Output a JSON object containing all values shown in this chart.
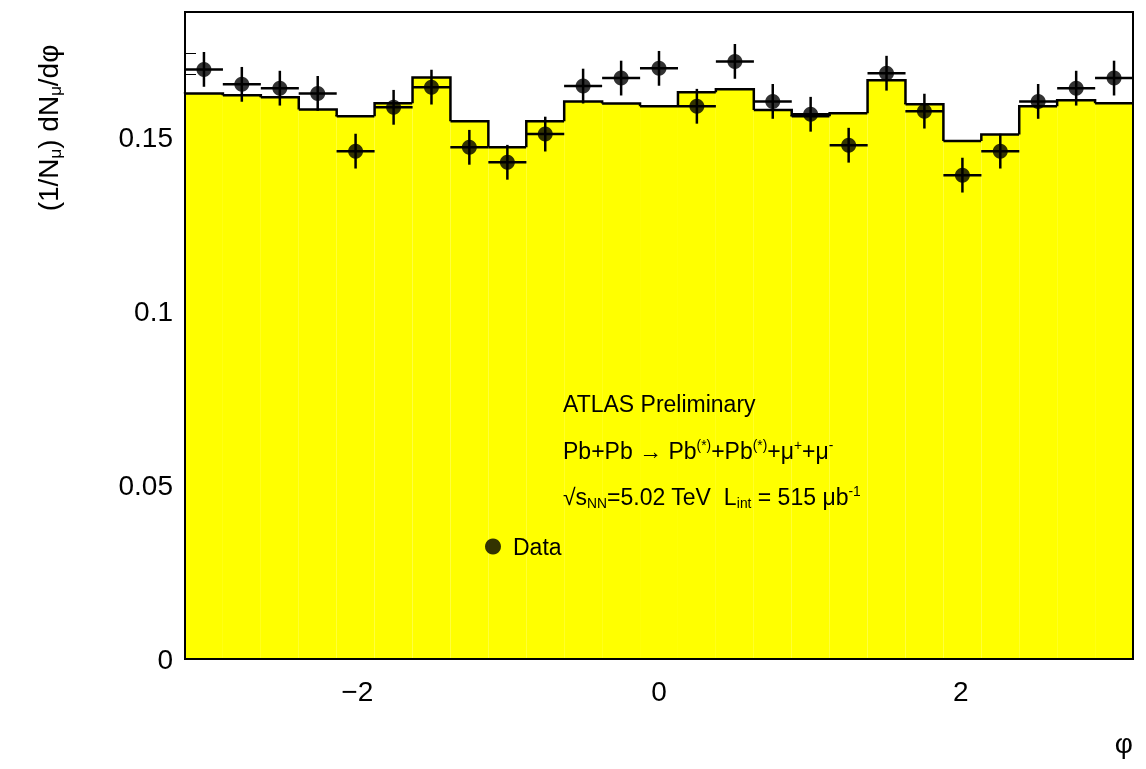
{
  "chart_data": {
    "type": "histogram",
    "ylabel": "(1/N$_{μ}$) dN$_{μ}$/dφ",
    "xlabel": "φ",
    "annotations": [
      "ATLAS Preliminary",
      "Pb+Pb → Pb$^{(*)}$+Pb$^{(*)}$+μ$^{+}$+μ$^{-}$",
      "√s$_{NN}$=5.02 TeV  L$_{int}$ = 515 μb$^{-1}$"
    ],
    "bins": [
      -3.1416,
      -2.8903,
      -2.6389,
      -2.3876,
      -2.1363,
      -1.885,
      -1.6336,
      -1.3823,
      -1.131,
      -0.8796,
      -0.6283,
      -0.377,
      -0.1257,
      0.1257,
      0.377,
      0.6283,
      0.8796,
      1.131,
      1.3823,
      1.6336,
      1.885,
      2.1363,
      2.3876,
      2.6389,
      2.8903,
      3.1416
    ],
    "values": [
      0.1626,
      0.1621,
      0.1615,
      0.158,
      0.156,
      0.1598,
      0.1672,
      0.1546,
      0.1471,
      0.1546,
      0.1603,
      0.1597,
      0.1589,
      0.1629,
      0.1638,
      0.1578,
      0.156,
      0.1569,
      0.1664,
      0.1595,
      0.1489,
      0.1508,
      0.1589,
      0.1606,
      0.1598
    ],
    "color": "#ffff00",
    "series": [
      {
        "type": "scatter",
        "name": "Data",
        "color": "#000000",
        "x": [
          -3.016,
          -2.765,
          -2.513,
          -2.262,
          -2.011,
          -1.759,
          -1.508,
          -1.257,
          -1.005,
          -0.754,
          -0.503,
          -0.251,
          0,
          0.251,
          0.503,
          0.754,
          1.005,
          1.257,
          1.508,
          1.759,
          2.011,
          2.262,
          2.513,
          2.765,
          3.016
        ],
        "values": [
          0.1695,
          0.1652,
          0.1641,
          0.1626,
          0.146,
          0.1586,
          0.1644,
          0.1471,
          0.1428,
          0.1509,
          0.1647,
          0.167,
          0.1698,
          0.1589,
          0.1718,
          0.1603,
          0.1566,
          0.1477,
          0.1684,
          0.1575,
          0.1391,
          0.146,
          0.1603,
          0.1641,
          0.167
        ],
        "errors": [
          0.005,
          0.005,
          0.005,
          0.005,
          0.005,
          0.005,
          0.005,
          0.005,
          0.005,
          0.005,
          0.005,
          0.005,
          0.005,
          0.005,
          0.005,
          0.005,
          0.005,
          0.005,
          0.005,
          0.005,
          0.005,
          0.005,
          0.005,
          0.005,
          0.005
        ],
        "xerrors": [
          0.126,
          0.126,
          0.126,
          0.126,
          0.126,
          0.126,
          0.126,
          0.126,
          0.126,
          0.126,
          0.126,
          0.126,
          0.126,
          0.126,
          0.126,
          0.126,
          0.126,
          0.126,
          0.126,
          0.126,
          0.126,
          0.126,
          0.126,
          0.126,
          0.126
        ],
        "marker": "circle"
      }
    ],
    "xlim": [
      -3.1416,
      3.1416
    ],
    "ylim": [
      0,
      0.186
    ],
    "xticks": [
      {
        "value": -2,
        "label": "−2"
      },
      0,
      2
    ],
    "yticks": [
      0,
      0.05,
      0.1,
      0.15
    ],
    "grid": false,
    "legend": "bottom"
  }
}
